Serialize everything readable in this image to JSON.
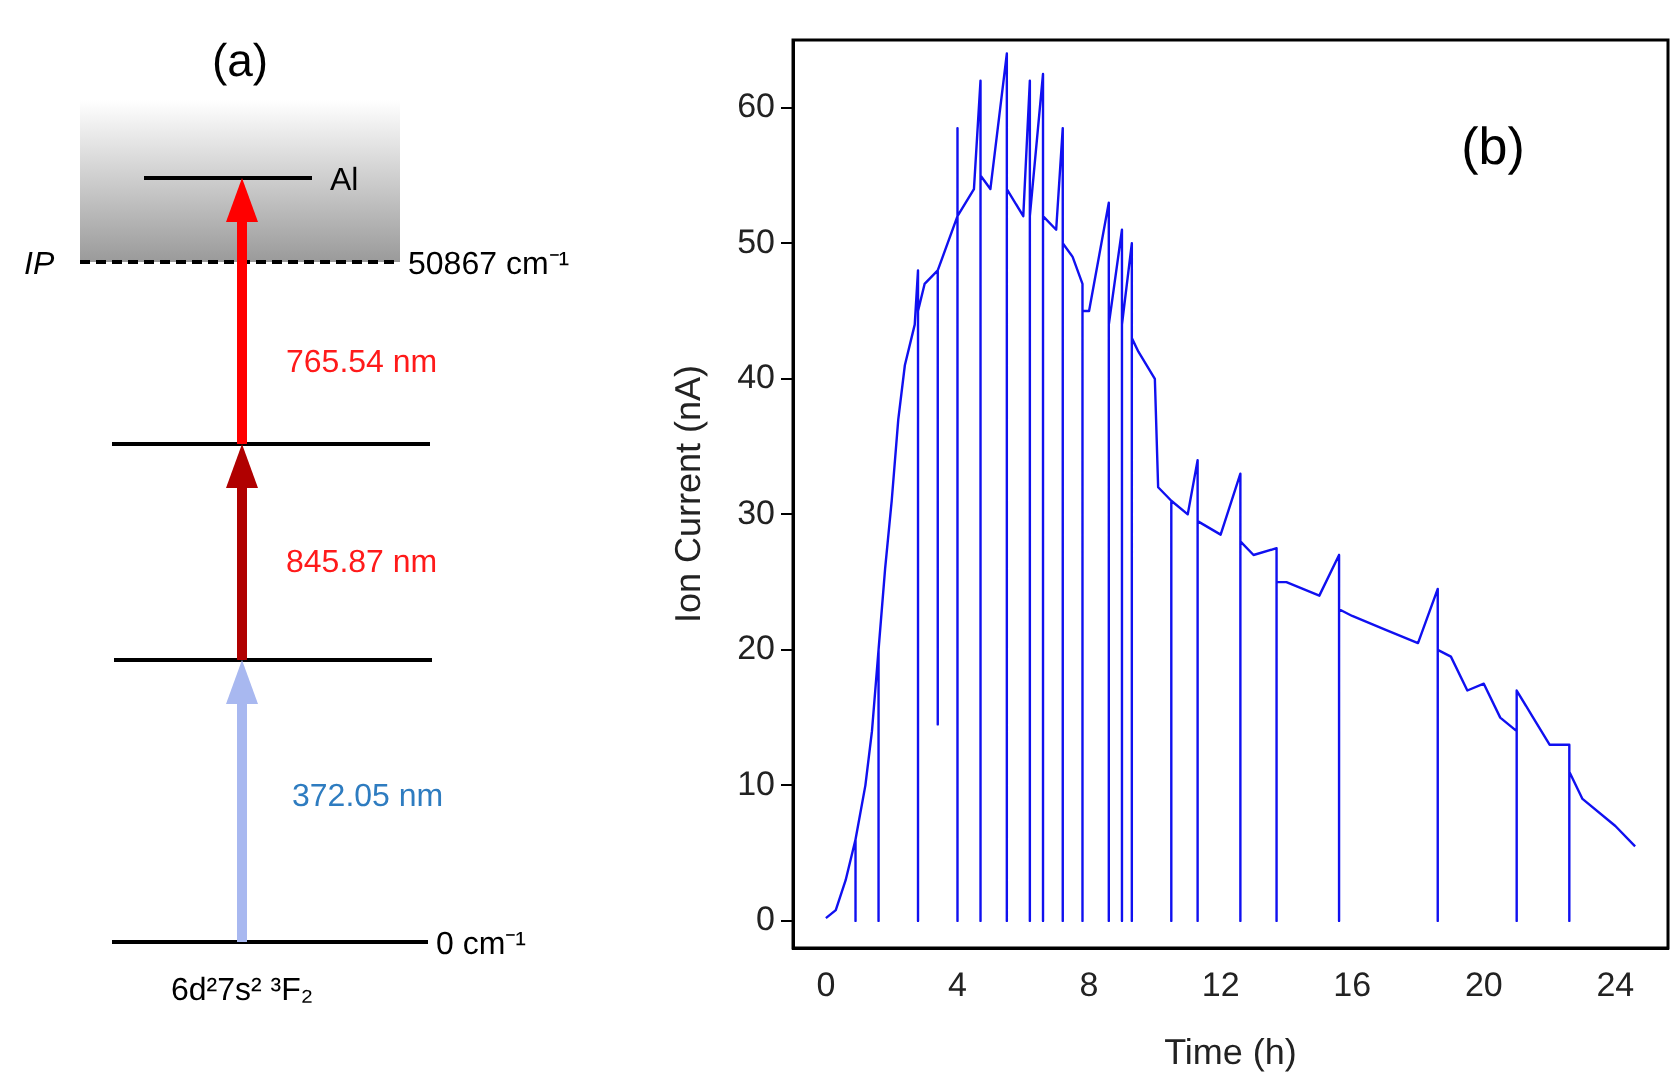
{
  "chart_data": [
    {
      "type": "other",
      "title": "(a)",
      "annotations": [
        "Al",
        "IP",
        "50867 cm⁻¹",
        "765.54 nm",
        "845.87 nm",
        "372.05 nm",
        "0 cm⁻¹",
        "6d²7s²  ³F₂"
      ]
    },
    {
      "type": "line",
      "title": "(b)",
      "xlabel": "Time (h)",
      "ylabel": "Ion Current (nA)",
      "xlim": [
        -1,
        25.6
      ],
      "ylim": [
        -2,
        65
      ],
      "xticks": [
        0,
        4,
        8,
        12,
        16,
        20,
        24
      ],
      "yticks": [
        0,
        10,
        20,
        30,
        40,
        50,
        60
      ],
      "grid": false,
      "legend": false,
      "marker": "none",
      "line_style": "solid",
      "series": [
        {
          "color": "#1010f0",
          "x": [
            0,
            0.3,
            0.6,
            0.9,
            0.9,
            0.9,
            1.2,
            1.4,
            1.6,
            1.6,
            1.6,
            1.8,
            2,
            2.2,
            2.4,
            2.7,
            2.8,
            2.8,
            2.8,
            3,
            3.4,
            3.4,
            3.4,
            4,
            4,
            4,
            4,
            4.5,
            4.7,
            4.7,
            4.7,
            5,
            5.5,
            5.5,
            5.5,
            6,
            6.2,
            6.2,
            6.2,
            6.6,
            6.6,
            6.6,
            7,
            7.2,
            7.2,
            7.2,
            7.5,
            7.8,
            7.8,
            7.8,
            8,
            8.6,
            8.6,
            8.6,
            9,
            9,
            9,
            9.3,
            9.3,
            9.3,
            9.5,
            10,
            10.1,
            10.5,
            10.5,
            10.5,
            11,
            11.3,
            11.3,
            11.3,
            12,
            12.6,
            12.6,
            12.6,
            13,
            13.7,
            13.7,
            13.7,
            14,
            15,
            15.6,
            15.6,
            15.6,
            16,
            17,
            18,
            18.6,
            18.6,
            18.6,
            19,
            19.5,
            20,
            20.5,
            21,
            21,
            21,
            21.5,
            22,
            22.6,
            22.6,
            22.6,
            23,
            24,
            24.6
          ],
          "values": [
            0.2,
            0.8,
            3,
            6,
            0,
            6,
            10,
            14,
            20,
            0,
            20,
            26,
            31,
            37,
            41,
            44,
            48,
            0,
            45,
            47,
            48,
            14.5,
            48,
            52,
            58.5,
            0,
            52,
            54,
            62,
            0,
            55,
            54,
            64,
            0,
            54,
            52,
            62,
            0,
            52,
            62.5,
            0,
            52,
            51,
            58.5,
            0,
            50,
            49,
            47,
            0,
            45,
            45,
            53,
            0,
            44,
            51,
            0,
            44,
            50,
            0,
            43,
            42,
            40,
            32,
            31,
            0,
            31,
            30,
            34,
            0,
            29.5,
            28.5,
            33,
            0,
            28,
            27,
            27.5,
            0,
            25,
            25,
            24,
            27,
            0,
            23,
            22.5,
            21.5,
            20.5,
            24.5,
            0,
            20,
            19.5,
            17,
            17.5,
            15,
            14,
            0,
            17,
            15,
            13,
            13,
            0,
            11,
            9,
            7,
            5.5
          ]
        }
      ]
    }
  ]
}
